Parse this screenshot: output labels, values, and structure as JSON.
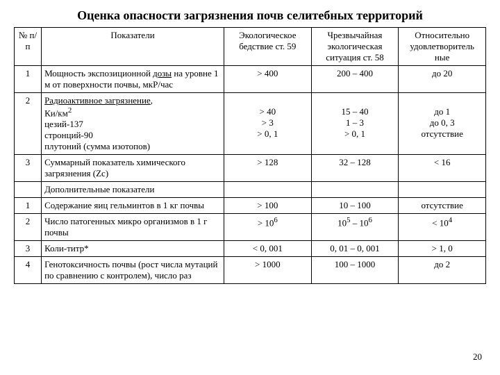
{
  "title": "Оценка опасности загрязнения почв селитебных территорий",
  "headers": {
    "num": "№ п/п",
    "indicator": "Показатели",
    "col1": "Экологическое бедствие ст. 59",
    "col2": "Чрезвычайная экологическая ситуация ст. 58",
    "col3": "Относительно удовлетворитель ные"
  },
  "rows": [
    {
      "n": "1",
      "ind_html": "Мощность экспозиционной <span class='u'>дозы</span> на уровне 1 м от поверхности почвы, мкР/час",
      "v1": "> 400",
      "v2": "200 – 400",
      "v3": "до 20"
    },
    {
      "n": "2",
      "ind_html": "<span class='u'>Радиоактивное загрязнение</span>,<br>Ки/км<sup>2</sup><br>цезий-137<br>стронций-90<br>плутоний (сумма изотопов)",
      "v1_html": "<br>> 40<br>> 3<br>> 0, 1",
      "v2_html": "<br>15 – 40<br>1 – 3<br>> 0, 1",
      "v3_html": "<br>до 1<br>до 0, 3<br>отсутствие"
    },
    {
      "n": "3",
      "ind_html": "Суммарный показатель химического загрязнения (Zc)",
      "v1": "> 128",
      "v2": "32 – 128",
      "v3": "< 16"
    }
  ],
  "section": "Дополнительные показатели",
  "rows2": [
    {
      "n": "1",
      "ind_html": "Содержание яиц гельминтов в 1 кг почвы",
      "v1": "> 100",
      "v2": "10 – 100",
      "v3": "отсутствие"
    },
    {
      "n": "2",
      "ind_html": "Число патогенных микро организмов в 1 г почвы",
      "v1_html": "> 10<sup>6</sup>",
      "v2_html": "10<sup>5</sup> – 10<sup>6</sup>",
      "v3_html": "< 10<sup>4</sup>"
    },
    {
      "n": "3",
      "ind_html": "Коли-титр*",
      "v1": "< 0, 001",
      "v2": "0, 01 – 0, 001",
      "v3": "> 1, 0"
    },
    {
      "n": "4",
      "ind_html": "Генотоксичность почвы (рост числа мутаций по сравнению с контролем), число раз",
      "v1": "> 1000",
      "v2": "100 – 1000",
      "v3": "до 2"
    }
  ],
  "page_num": "20"
}
